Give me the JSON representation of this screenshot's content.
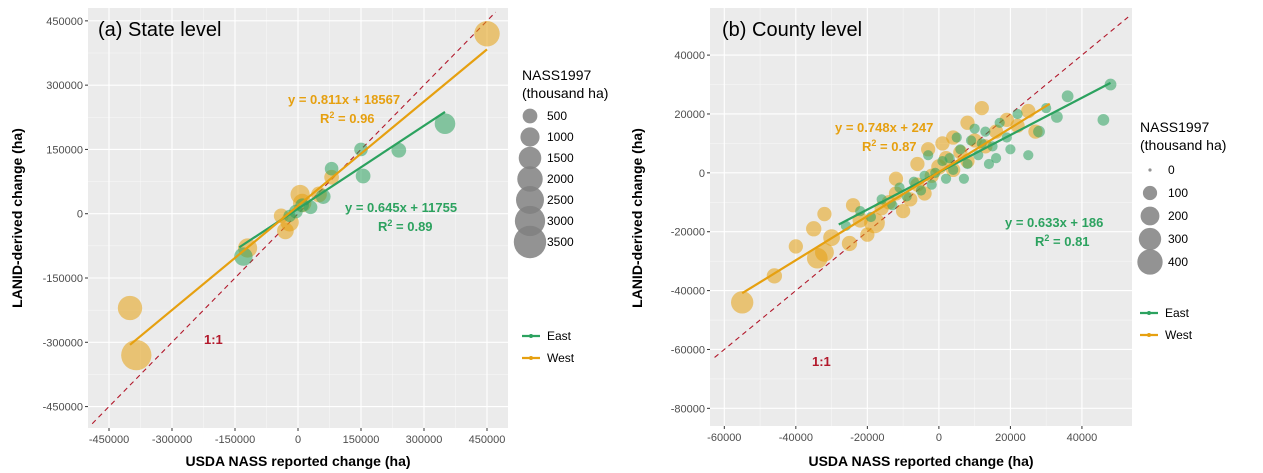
{
  "chart_data": [
    {
      "type": "scatter",
      "title": "(a) State level",
      "xlabel": "USDA NASS reported change (ha)",
      "ylabel": "LANID-derived change (ha)",
      "xlim": [
        -500000,
        500000
      ],
      "ylim": [
        -500000,
        480000
      ],
      "xticks": [
        -450000,
        -300000,
        -150000,
        0,
        150000,
        300000,
        450000
      ],
      "xtick_labels": [
        "-450000",
        "-300000",
        "-150000",
        "0",
        "150000",
        "300000",
        "450000"
      ],
      "yticks": [
        -450000,
        -300000,
        -150000,
        0,
        150000,
        300000,
        450000
      ],
      "ytick_labels": [
        "-450000",
        "-300000",
        "-150000",
        "0",
        "150000",
        "300000",
        "450000"
      ],
      "grid": true,
      "one_to_one_label": "1:1",
      "series": [
        {
          "name": "East",
          "color": "#2ca25f",
          "fit": {
            "slope": 0.645,
            "intercept": 11755,
            "x_range": [
              -140000,
              350000
            ],
            "label": "y = 0.645x + 11755",
            "r2_label": "R2 = 0.89"
          },
          "points": [
            {
              "x": 350000,
              "y": 210000,
              "size": 1200
            },
            {
              "x": 240000,
              "y": 148000,
              "size": 500
            },
            {
              "x": 155000,
              "y": 88000,
              "size": 500
            },
            {
              "x": 150000,
              "y": 150000,
              "size": 400
            },
            {
              "x": 80000,
              "y": 105000,
              "size": 400
            },
            {
              "x": 60000,
              "y": 40000,
              "size": 500
            },
            {
              "x": 30000,
              "y": 15000,
              "size": 400
            },
            {
              "x": 10000,
              "y": 20000,
              "size": 400
            },
            {
              "x": -5000,
              "y": 5000,
              "size": 400
            },
            {
              "x": -20000,
              "y": -5000,
              "size": 300
            },
            {
              "x": -130000,
              "y": -100000,
              "size": 900
            }
          ]
        },
        {
          "name": "West",
          "color": "#e6a010",
          "fit": {
            "slope": 0.811,
            "intercept": 18567,
            "x_range": [
              -400000,
              450000
            ],
            "label": "y = 0.811x + 18567",
            "r2_label": "R2 = 0.96"
          },
          "points": [
            {
              "x": 450000,
              "y": 420000,
              "size": 2000
            },
            {
              "x": 80000,
              "y": 85000,
              "size": 500
            },
            {
              "x": 50000,
              "y": 45000,
              "size": 600
            },
            {
              "x": 5000,
              "y": 45000,
              "size": 1000
            },
            {
              "x": 10000,
              "y": 25000,
              "size": 900
            },
            {
              "x": -20000,
              "y": -20000,
              "size": 900
            },
            {
              "x": -30000,
              "y": -40000,
              "size": 700
            },
            {
              "x": -40000,
              "y": -5000,
              "size": 500
            },
            {
              "x": -120000,
              "y": -80000,
              "size": 1000
            },
            {
              "x": -400000,
              "y": -220000,
              "size": 1800
            },
            {
              "x": -385000,
              "y": -330000,
              "size": 3000
            }
          ]
        }
      ],
      "legend": {
        "size_title": [
          "NASS1997",
          "(thousand ha)"
        ],
        "size_entries": [
          {
            "label": "500",
            "size": 500
          },
          {
            "label": "1000",
            "size": 1000
          },
          {
            "label": "1500",
            "size": 1500
          },
          {
            "label": "2000",
            "size": 2000
          },
          {
            "label": "2500",
            "size": 2500
          },
          {
            "label": "3000",
            "size": 3000
          },
          {
            "label": "3500",
            "size": 3500
          }
        ],
        "color_entries": [
          "East",
          "West"
        ]
      }
    },
    {
      "type": "scatter",
      "title": "(b) County level",
      "xlabel": "USDA NASS reported change (ha)",
      "ylabel": "LANID-derived change (ha)",
      "xlim": [
        -64000,
        54000
      ],
      "ylim": [
        -86000,
        56000
      ],
      "xticks": [
        -60000,
        -40000,
        -20000,
        0,
        20000,
        40000
      ],
      "xtick_labels": [
        "-60000",
        "-40000",
        "-20000",
        "0",
        "20000",
        "40000"
      ],
      "yticks": [
        -80000,
        -60000,
        -40000,
        -20000,
        0,
        20000,
        40000
      ],
      "ytick_labels": [
        "-80000",
        "-60000",
        "-40000",
        "-20000",
        "0",
        "20000",
        "40000"
      ],
      "grid": true,
      "one_to_one_label": "1:1",
      "series": [
        {
          "name": "East",
          "color": "#2ca25f",
          "fit": {
            "slope": 0.633,
            "intercept": 186,
            "x_range": [
              -28000,
              48000
            ],
            "label": "y = 0.633x + 186",
            "r2_label": "R2 = 0.81"
          },
          "points": [
            {
              "x": 48000,
              "y": 30000,
              "size": 60
            },
            {
              "x": 46000,
              "y": 18000,
              "size": 60
            },
            {
              "x": 36000,
              "y": 26000,
              "size": 60
            },
            {
              "x": 33000,
              "y": 19000,
              "size": 60
            },
            {
              "x": 28000,
              "y": 14000,
              "size": 60
            },
            {
              "x": 25000,
              "y": 6000,
              "size": 40
            },
            {
              "x": 22000,
              "y": 20000,
              "size": 40
            },
            {
              "x": 19000,
              "y": 12000,
              "size": 40
            },
            {
              "x": 17000,
              "y": 17000,
              "size": 40
            },
            {
              "x": 15000,
              "y": 9000,
              "size": 40
            },
            {
              "x": 13000,
              "y": 14000,
              "size": 40
            },
            {
              "x": 11000,
              "y": 6000,
              "size": 40
            },
            {
              "x": 9000,
              "y": 11000,
              "size": 40
            },
            {
              "x": 8000,
              "y": 3000,
              "size": 40
            },
            {
              "x": 6000,
              "y": 8000,
              "size": 40
            },
            {
              "x": 4000,
              "y": 1000,
              "size": 40
            },
            {
              "x": 3000,
              "y": 5000,
              "size": 40
            },
            {
              "x": 2000,
              "y": -2000,
              "size": 40
            },
            {
              "x": 1000,
              "y": 4000,
              "size": 40
            },
            {
              "x": -1000,
              "y": 0,
              "size": 40
            },
            {
              "x": -2000,
              "y": -4000,
              "size": 40
            },
            {
              "x": -4000,
              "y": -1000,
              "size": 40
            },
            {
              "x": -5000,
              "y": -6000,
              "size": 40
            },
            {
              "x": -7000,
              "y": -3000,
              "size": 40
            },
            {
              "x": -9000,
              "y": -8000,
              "size": 40
            },
            {
              "x": -11000,
              "y": -5000,
              "size": 40
            },
            {
              "x": -13000,
              "y": -11000,
              "size": 40
            },
            {
              "x": -16000,
              "y": -9000,
              "size": 40
            },
            {
              "x": -19000,
              "y": -15000,
              "size": 40
            },
            {
              "x": -22000,
              "y": -13000,
              "size": 40
            },
            {
              "x": -26000,
              "y": -18000,
              "size": 40
            },
            {
              "x": 10000,
              "y": 15000,
              "size": 40
            },
            {
              "x": 14000,
              "y": 3000,
              "size": 40
            },
            {
              "x": 20000,
              "y": 8000,
              "size": 40
            },
            {
              "x": 5000,
              "y": 12000,
              "size": 40
            },
            {
              "x": -3000,
              "y": 6000,
              "size": 40
            },
            {
              "x": 7000,
              "y": -2000,
              "size": 40
            },
            {
              "x": 12000,
              "y": 10000,
              "size": 40
            },
            {
              "x": 16000,
              "y": 5000,
              "size": 40
            },
            {
              "x": 30000,
              "y": 22000,
              "size": 40
            }
          ]
        },
        {
          "name": "West",
          "color": "#e6a010",
          "fit": {
            "slope": 0.748,
            "intercept": 247,
            "x_range": [
              -55000,
              31000
            ],
            "label": "y = 0.748x + 247",
            "r2_label": "R2 = 0.87"
          },
          "points": [
            {
              "x": -55000,
              "y": -44000,
              "size": 300
            },
            {
              "x": -46000,
              "y": -35000,
              "size": 120
            },
            {
              "x": -34000,
              "y": -29000,
              "size": 250
            },
            {
              "x": -32000,
              "y": -27000,
              "size": 200
            },
            {
              "x": -35000,
              "y": -19000,
              "size": 120
            },
            {
              "x": -32000,
              "y": -14000,
              "size": 100
            },
            {
              "x": -30000,
              "y": -22000,
              "size": 150
            },
            {
              "x": -25000,
              "y": -24000,
              "size": 120
            },
            {
              "x": -22000,
              "y": -16000,
              "size": 120
            },
            {
              "x": -20000,
              "y": -21000,
              "size": 100
            },
            {
              "x": -18000,
              "y": -17000,
              "size": 250
            },
            {
              "x": -16000,
              "y": -12000,
              "size": 100
            },
            {
              "x": -14000,
              "y": -10000,
              "size": 100
            },
            {
              "x": -12000,
              "y": -7000,
              "size": 100
            },
            {
              "x": -10000,
              "y": -13000,
              "size": 100
            },
            {
              "x": -8000,
              "y": -9000,
              "size": 100
            },
            {
              "x": -6000,
              "y": -4000,
              "size": 100
            },
            {
              "x": -4000,
              "y": -7000,
              "size": 100
            },
            {
              "x": -2000,
              "y": -1000,
              "size": 100
            },
            {
              "x": 0,
              "y": 2000,
              "size": 120
            },
            {
              "x": 2000,
              "y": 5000,
              "size": 100
            },
            {
              "x": 4000,
              "y": 1000,
              "size": 100
            },
            {
              "x": 6000,
              "y": 7000,
              "size": 100
            },
            {
              "x": 8000,
              "y": 4000,
              "size": 100
            },
            {
              "x": 10000,
              "y": 11000,
              "size": 100
            },
            {
              "x": 13000,
              "y": 9000,
              "size": 100
            },
            {
              "x": 16000,
              "y": 14000,
              "size": 100
            },
            {
              "x": 19000,
              "y": 18000,
              "size": 100
            },
            {
              "x": 22000,
              "y": 16000,
              "size": 100
            },
            {
              "x": 25000,
              "y": 21000,
              "size": 100
            },
            {
              "x": 27000,
              "y": 14000,
              "size": 100
            },
            {
              "x": 8000,
              "y": 17000,
              "size": 100
            },
            {
              "x": 4000,
              "y": 12000,
              "size": 100
            },
            {
              "x": 1000,
              "y": 10000,
              "size": 100
            },
            {
              "x": -6000,
              "y": 3000,
              "size": 100
            },
            {
              "x": -12000,
              "y": -2000,
              "size": 100
            },
            {
              "x": -24000,
              "y": -11000,
              "size": 100
            },
            {
              "x": -40000,
              "y": -25000,
              "size": 100
            },
            {
              "x": 12000,
              "y": 22000,
              "size": 100
            },
            {
              "x": -3000,
              "y": 8000,
              "size": 100
            }
          ]
        }
      ],
      "legend": {
        "size_title": [
          "NASS1997",
          "(thousand ha)"
        ],
        "size_entries": [
          {
            "label": "0",
            "size": 0
          },
          {
            "label": "100",
            "size": 100
          },
          {
            "label": "200",
            "size": 200
          },
          {
            "label": "300",
            "size": 300
          },
          {
            "label": "400",
            "size": 400
          }
        ],
        "color_entries": [
          "East",
          "West"
        ]
      }
    }
  ]
}
